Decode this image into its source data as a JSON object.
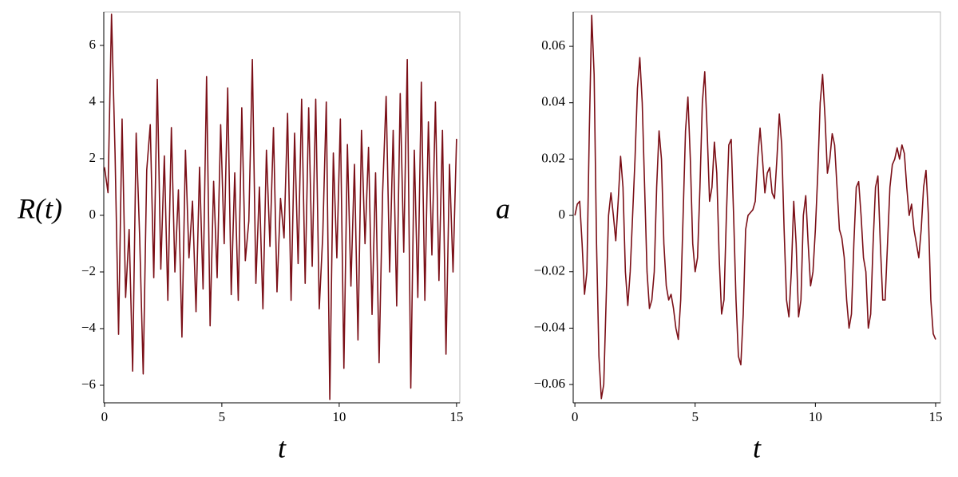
{
  "chart_data": [
    {
      "type": "line",
      "y_label": "R(t)",
      "x_label": "t",
      "color": "#7b0f17",
      "xlim": [
        -0.03,
        15.14
      ],
      "ylim": [
        -6.62,
        7.18
      ],
      "xticks": [
        0,
        5,
        10,
        15
      ],
      "yticks": [
        {
          "value": -6,
          "label": "−6"
        },
        {
          "value": -4,
          "label": "−4"
        },
        {
          "value": -2,
          "label": "−2"
        },
        0,
        2,
        4,
        6
      ],
      "x": [
        0,
        0.15,
        0.3,
        0.45,
        0.6,
        0.75,
        0.9,
        1.05,
        1.2,
        1.35,
        1.5,
        1.65,
        1.8,
        1.95,
        2.1,
        2.25,
        2.4,
        2.55,
        2.7,
        2.85,
        3,
        3.15,
        3.3,
        3.45,
        3.6,
        3.75,
        3.9,
        4.05,
        4.2,
        4.35,
        4.5,
        4.65,
        4.8,
        4.95,
        5.1,
        5.25,
        5.4,
        5.55,
        5.7,
        5.85,
        6,
        6.15,
        6.3,
        6.45,
        6.6,
        6.75,
        6.9,
        7.05,
        7.2,
        7.35,
        7.5,
        7.65,
        7.8,
        7.95,
        8.1,
        8.25,
        8.4,
        8.55,
        8.7,
        8.85,
        9,
        9.15,
        9.3,
        9.45,
        9.6,
        9.75,
        9.9,
        10.05,
        10.2,
        10.35,
        10.5,
        10.65,
        10.8,
        10.95,
        11.1,
        11.25,
        11.4,
        11.55,
        11.7,
        11.85,
        12,
        12.15,
        12.3,
        12.45,
        12.6,
        12.75,
        12.9,
        13.05,
        13.2,
        13.35,
        13.5,
        13.65,
        13.8,
        13.95,
        14.1,
        14.25,
        14.4,
        14.55,
        14.7,
        14.85,
        15
      ],
      "values": [
        1.7,
        0.8,
        7.1,
        2.2,
        -4.2,
        3.4,
        -2.9,
        -0.5,
        -5.5,
        2.9,
        -0.8,
        -5.6,
        1.6,
        3.2,
        -2.2,
        4.8,
        -1.9,
        2.1,
        -3.0,
        3.1,
        -2.0,
        0.9,
        -4.3,
        2.3,
        -1.5,
        0.5,
        -3.4,
        1.7,
        -2.6,
        4.9,
        -3.9,
        1.2,
        -2.2,
        3.2,
        -1.0,
        4.5,
        -2.8,
        1.5,
        -3.0,
        3.8,
        -1.6,
        -0.2,
        5.5,
        -2.4,
        1.0,
        -3.3,
        2.3,
        -1.1,
        3.1,
        -2.7,
        0.6,
        -0.8,
        3.6,
        -3.0,
        2.9,
        -1.7,
        4.1,
        -2.4,
        3.8,
        -1.8,
        4.1,
        -3.3,
        -0.7,
        4.0,
        -6.5,
        2.2,
        -1.5,
        3.4,
        -5.4,
        2.5,
        -2.5,
        1.8,
        -4.4,
        3.0,
        -1.0,
        2.4,
        -3.5,
        1.5,
        -5.2,
        0.8,
        4.2,
        -2.0,
        3.0,
        -3.2,
        4.3,
        -1.3,
        5.5,
        -6.1,
        2.3,
        -2.9,
        4.7,
        -3.0,
        3.3,
        -1.4,
        4.0,
        -2.3,
        3.0,
        -4.9,
        1.8,
        -2.0,
        2.7
      ]
    },
    {
      "type": "line",
      "y_label": "a",
      "x_label": "t",
      "color": "#7b0f17",
      "xlim": [
        -0.07,
        15.2
      ],
      "ylim": [
        -0.0665,
        0.0722
      ],
      "xticks": [
        0,
        5,
        10,
        15
      ],
      "yticks": [
        {
          "value": -0.06,
          "label": "−0.06"
        },
        {
          "value": -0.04,
          "label": "−0.04"
        },
        {
          "value": -0.02,
          "label": "−0.02"
        },
        0,
        0.02,
        0.04,
        0.06
      ],
      "x": [
        0,
        0.1,
        0.2,
        0.3,
        0.4,
        0.5,
        0.6,
        0.7,
        0.8,
        0.9,
        1,
        1.1,
        1.2,
        1.3,
        1.4,
        1.5,
        1.6,
        1.7,
        1.8,
        1.9,
        2,
        2.1,
        2.2,
        2.3,
        2.4,
        2.5,
        2.6,
        2.7,
        2.8,
        2.9,
        3,
        3.1,
        3.2,
        3.3,
        3.4,
        3.5,
        3.6,
        3.7,
        3.8,
        3.9,
        4,
        4.1,
        4.2,
        4.3,
        4.4,
        4.5,
        4.6,
        4.7,
        4.8,
        4.9,
        5,
        5.1,
        5.2,
        5.3,
        5.4,
        5.5,
        5.6,
        5.7,
        5.8,
        5.9,
        6,
        6.1,
        6.2,
        6.3,
        6.4,
        6.5,
        6.6,
        6.7,
        6.8,
        6.9,
        7,
        7.1,
        7.2,
        7.3,
        7.4,
        7.5,
        7.6,
        7.7,
        7.8,
        7.9,
        8,
        8.1,
        8.2,
        8.3,
        8.4,
        8.5,
        8.6,
        8.7,
        8.8,
        8.9,
        9,
        9.1,
        9.2,
        9.3,
        9.4,
        9.5,
        9.6,
        9.7,
        9.8,
        9.9,
        10,
        10.1,
        10.2,
        10.3,
        10.4,
        10.5,
        10.6,
        10.7,
        10.8,
        10.9,
        11,
        11.1,
        11.2,
        11.3,
        11.4,
        11.5,
        11.6,
        11.7,
        11.8,
        11.9,
        12,
        12.1,
        12.2,
        12.3,
        12.4,
        12.5,
        12.6,
        12.7,
        12.8,
        12.9,
        13,
        13.1,
        13.2,
        13.3,
        13.4,
        13.5,
        13.6,
        13.7,
        13.8,
        13.9,
        14,
        14.1,
        14.2,
        14.3,
        14.4,
        14.5,
        14.6,
        14.7,
        14.8,
        14.9,
        15
      ],
      "values": [
        0,
        0.004,
        0.005,
        -0.01,
        -0.028,
        -0.02,
        0.03,
        0.071,
        0.05,
        -0.01,
        -0.05,
        -0.065,
        -0.06,
        -0.03,
        0,
        0.008,
        0,
        -0.009,
        0.005,
        0.021,
        0.01,
        -0.02,
        -0.032,
        -0.02,
        0,
        0.02,
        0.045,
        0.056,
        0.04,
        0.01,
        -0.02,
        -0.033,
        -0.03,
        -0.02,
        0.01,
        0.03,
        0.02,
        -0.01,
        -0.025,
        -0.03,
        -0.028,
        -0.033,
        -0.04,
        -0.044,
        -0.03,
        0,
        0.03,
        0.042,
        0.02,
        -0.01,
        -0.02,
        -0.015,
        0.01,
        0.04,
        0.051,
        0.03,
        0.005,
        0.01,
        0.026,
        0.015,
        -0.015,
        -0.035,
        -0.03,
        0,
        0.025,
        0.027,
        0,
        -0.03,
        -0.05,
        -0.053,
        -0.035,
        -0.005,
        0,
        0.001,
        0.002,
        0.005,
        0.02,
        0.031,
        0.02,
        0.008,
        0.015,
        0.017,
        0.008,
        0.006,
        0.02,
        0.036,
        0.025,
        -0.005,
        -0.03,
        -0.036,
        -0.02,
        0.005,
        -0.01,
        -0.036,
        -0.03,
        0,
        0.007,
        -0.01,
        -0.025,
        -0.02,
        -0.005,
        0.015,
        0.04,
        0.05,
        0.035,
        0.015,
        0.02,
        0.029,
        0.025,
        0.01,
        -0.005,
        -0.008,
        -0.015,
        -0.03,
        -0.04,
        -0.035,
        -0.01,
        0.01,
        0.012,
        0,
        -0.015,
        -0.02,
        -0.04,
        -0.035,
        -0.01,
        0.01,
        0.014,
        -0.01,
        -0.03,
        -0.03,
        -0.01,
        0.01,
        0.018,
        0.02,
        0.024,
        0.02,
        0.025,
        0.022,
        0.01,
        0,
        0.004,
        -0.005,
        -0.01,
        -0.015,
        -0.005,
        0.01,
        0.016,
        0,
        -0.03,
        -0.042,
        -0.044
      ]
    }
  ]
}
